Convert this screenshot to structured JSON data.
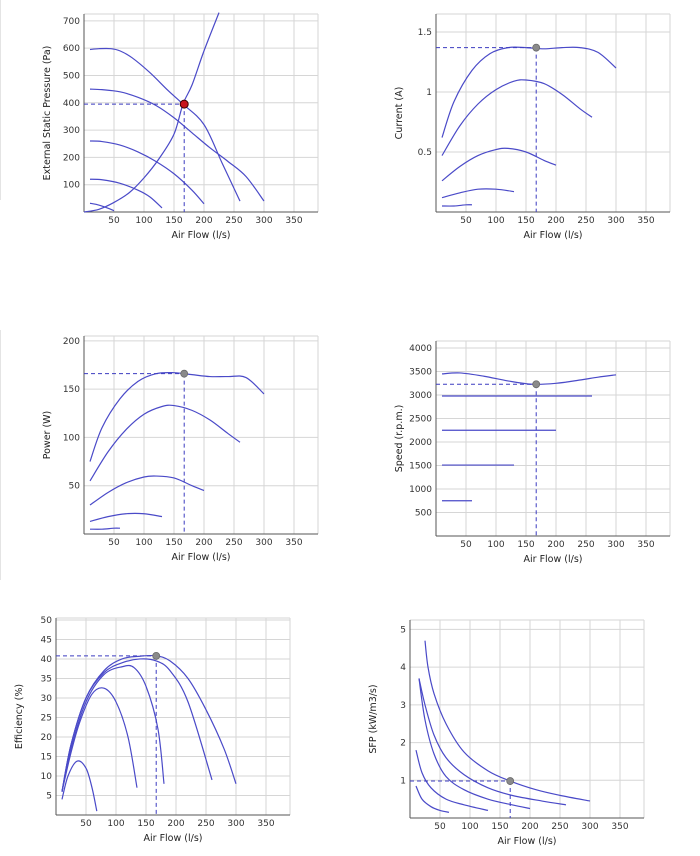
{
  "chart_data": [
    {
      "id": "pressure",
      "type": "line",
      "xlabel": "Air Flow (l/s)",
      "ylabel": "External Static Pressure (Pa)",
      "xlim": [
        0,
        390
      ],
      "ylim": [
        0,
        725
      ],
      "xticks": [
        50,
        100,
        150,
        200,
        250,
        300,
        350
      ],
      "yticks": [
        100,
        200,
        300,
        400,
        500,
        600,
        700
      ],
      "series": [
        {
          "x": [
            10,
            25,
            45,
            60,
            80,
            110,
            140,
            165,
            200,
            230,
            260
          ],
          "y": [
            595,
            598,
            598,
            590,
            565,
            510,
            445,
            395,
            320,
            180,
            40
          ]
        },
        {
          "x": [
            10,
            30,
            60,
            90,
            120,
            150,
            180,
            210,
            240,
            270,
            300
          ],
          "y": [
            450,
            448,
            440,
            420,
            390,
            345,
            290,
            235,
            185,
            130,
            40
          ]
        },
        {
          "x": [
            10,
            30,
            60,
            90,
            120,
            150,
            180,
            200
          ],
          "y": [
            260,
            258,
            245,
            220,
            185,
            140,
            80,
            30
          ]
        },
        {
          "x": [
            10,
            30,
            60,
            90,
            110,
            130
          ],
          "y": [
            120,
            118,
            105,
            80,
            55,
            15
          ]
        },
        {
          "x": [
            10,
            20,
            35,
            50
          ],
          "y": [
            32,
            28,
            18,
            5
          ]
        },
        {
          "x": [
            0,
            25,
            50,
            75,
            100,
            125,
            150,
            165,
            180,
            200,
            225
          ],
          "y": [
            0,
            10,
            35,
            70,
            125,
            195,
            285,
            395,
            465,
            590,
            730
          ]
        }
      ],
      "system_curve_index": 5,
      "operating_point": {
        "x": 167,
        "y": 395
      }
    },
    {
      "id": "current",
      "type": "line",
      "xlabel": "Air Flow (l/s)",
      "ylabel": "Current (A)",
      "xlim": [
        0,
        390
      ],
      "ylim": [
        0,
        1.65
      ],
      "xticks": [
        50,
        100,
        150,
        200,
        250,
        300,
        350
      ],
      "yticks": [
        0.5,
        1,
        1.5
      ],
      "ytick_labels": [
        "0.5",
        "1",
        "1.5"
      ],
      "series": [
        {
          "x": [
            10,
            30,
            60,
            90,
            120,
            150,
            180,
            210,
            240,
            270,
            300
          ],
          "y": [
            0.62,
            0.92,
            1.18,
            1.32,
            1.37,
            1.37,
            1.36,
            1.37,
            1.37,
            1.33,
            1.2
          ]
        },
        {
          "x": [
            10,
            40,
            70,
            100,
            130,
            150,
            180,
            210,
            240,
            260
          ],
          "y": [
            0.47,
            0.72,
            0.9,
            1.02,
            1.09,
            1.1,
            1.07,
            0.98,
            0.86,
            0.79
          ]
        },
        {
          "x": [
            10,
            40,
            70,
            100,
            120,
            150,
            180,
            200
          ],
          "y": [
            0.26,
            0.38,
            0.47,
            0.52,
            0.53,
            0.5,
            0.43,
            0.39
          ]
        },
        {
          "x": [
            10,
            40,
            70,
            100,
            130
          ],
          "y": [
            0.12,
            0.16,
            0.19,
            0.19,
            0.17
          ]
        },
        {
          "x": [
            10,
            30,
            50,
            60
          ],
          "y": [
            0.05,
            0.05,
            0.06,
            0.06
          ]
        }
      ],
      "operating_point": {
        "x": 167,
        "y": 1.37
      }
    },
    {
      "id": "power",
      "type": "line",
      "xlabel": "Air Flow (l/s)",
      "ylabel": "Power (W)",
      "xlim": [
        0,
        390
      ],
      "ylim": [
        0,
        205
      ],
      "xticks": [
        50,
        100,
        150,
        200,
        250,
        300,
        350
      ],
      "yticks": [
        50,
        100,
        150,
        200
      ],
      "series": [
        {
          "x": [
            10,
            30,
            60,
            90,
            120,
            150,
            180,
            210,
            240,
            270,
            300
          ],
          "y": [
            75,
            110,
            140,
            158,
            166,
            167,
            165,
            163,
            163,
            162,
            145
          ]
        },
        {
          "x": [
            10,
            40,
            70,
            100,
            130,
            150,
            180,
            210,
            240,
            260
          ],
          "y": [
            55,
            85,
            108,
            124,
            132,
            133,
            128,
            118,
            104,
            95
          ]
        },
        {
          "x": [
            10,
            40,
            70,
            100,
            120,
            150,
            180,
            200
          ],
          "y": [
            30,
            43,
            53,
            59,
            60,
            58,
            50,
            45
          ]
        },
        {
          "x": [
            10,
            40,
            70,
            100,
            130
          ],
          "y": [
            13,
            18,
            21,
            21,
            18
          ]
        },
        {
          "x": [
            10,
            30,
            50,
            60
          ],
          "y": [
            5,
            5,
            6,
            6
          ]
        }
      ],
      "operating_point": {
        "x": 167,
        "y": 166
      }
    },
    {
      "id": "speed",
      "type": "line",
      "xlabel": "Air Flow (l/s)",
      "ylabel": "Speed (r.p.m.)",
      "xlim": [
        0,
        390
      ],
      "ylim": [
        0,
        4150
      ],
      "xticks": [
        50,
        100,
        150,
        200,
        250,
        300,
        350
      ],
      "yticks": [
        500,
        1000,
        1500,
        2000,
        2500,
        3000,
        3500,
        4000
      ],
      "series": [
        {
          "x": [
            10,
            40,
            80,
            120,
            160,
            200,
            240,
            270,
            300
          ],
          "y": [
            3450,
            3470,
            3400,
            3300,
            3230,
            3250,
            3320,
            3380,
            3430
          ]
        },
        {
          "x": [
            10,
            260
          ],
          "y": [
            2980,
            2980
          ]
        },
        {
          "x": [
            10,
            200
          ],
          "y": [
            2250,
            2250
          ]
        },
        {
          "x": [
            10,
            130
          ],
          "y": [
            1510,
            1510
          ]
        },
        {
          "x": [
            10,
            60
          ],
          "y": [
            750,
            750
          ]
        }
      ],
      "operating_point": {
        "x": 167,
        "y": 3230
      }
    },
    {
      "id": "efficiency",
      "type": "line",
      "xlabel": "Air Flow (l/s)",
      "ylabel": "Efficiency (%)",
      "xlim": [
        0,
        390
      ],
      "ylim": [
        0,
        50.5
      ],
      "xticks": [
        50,
        100,
        150,
        200,
        250,
        300,
        350
      ],
      "yticks": [
        5,
        10,
        15,
        20,
        25,
        30,
        35,
        40,
        45,
        50
      ],
      "series": [
        {
          "x": [
            10,
            25,
            50,
            80,
            110,
            140,
            167,
            190,
            220,
            250,
            280,
            300
          ],
          "y": [
            6,
            18,
            30,
            37,
            40,
            40.7,
            40.8,
            39.5,
            35,
            27,
            17,
            8
          ]
        },
        {
          "x": [
            10,
            25,
            50,
            80,
            110,
            140,
            167,
            190,
            220,
            260
          ],
          "y": [
            6,
            18,
            30,
            36.5,
            39,
            40,
            39.5,
            37,
            29,
            9
          ]
        },
        {
          "x": [
            10,
            25,
            50,
            80,
            110,
            130,
            150,
            170,
            180
          ],
          "y": [
            6,
            17,
            29,
            36,
            38,
            37.8,
            33,
            22,
            8
          ]
        },
        {
          "x": [
            10,
            25,
            40,
            60,
            80,
            100,
            120,
            135
          ],
          "y": [
            6,
            16,
            24,
            31,
            32.5,
            29,
            20,
            7
          ]
        },
        {
          "x": [
            10,
            20,
            35,
            50,
            60,
            68
          ],
          "y": [
            4,
            10,
            13.8,
            12,
            7,
            1
          ]
        }
      ],
      "operating_point": {
        "x": 167,
        "y": 40.8
      }
    },
    {
      "id": "sfp",
      "type": "line",
      "xlabel": "Air Flow (l/s)",
      "ylabel": "SFP (kW/m3/s)",
      "xlim": [
        0,
        390
      ],
      "ylim": [
        0,
        5.25
      ],
      "xticks": [
        50,
        100,
        150,
        200,
        250,
        300,
        350
      ],
      "yticks": [
        1,
        2,
        3,
        4,
        5
      ],
      "series": [
        {
          "x": [
            25,
            30,
            40,
            60,
            90,
            130,
            167,
            210,
            250,
            300
          ],
          "y": [
            4.7,
            4.0,
            3.3,
            2.5,
            1.75,
            1.25,
            0.98,
            0.75,
            0.6,
            0.45
          ]
        },
        {
          "x": [
            15,
            25,
            40,
            60,
            90,
            130,
            170,
            220,
            260
          ],
          "y": [
            3.7,
            3.0,
            2.2,
            1.6,
            1.15,
            0.8,
            0.6,
            0.45,
            0.35
          ]
        },
        {
          "x": [
            15,
            25,
            40,
            60,
            90,
            130,
            170,
            200
          ],
          "y": [
            3.7,
            2.6,
            1.7,
            1.1,
            0.75,
            0.5,
            0.35,
            0.25
          ]
        },
        {
          "x": [
            10,
            20,
            35,
            60,
            90,
            130
          ],
          "y": [
            1.8,
            1.2,
            0.8,
            0.5,
            0.35,
            0.2
          ]
        },
        {
          "x": [
            10,
            20,
            35,
            50,
            65
          ],
          "y": [
            0.85,
            0.5,
            0.3,
            0.2,
            0.15
          ]
        }
      ],
      "operating_point": {
        "x": 167,
        "y": 0.98
      }
    }
  ]
}
